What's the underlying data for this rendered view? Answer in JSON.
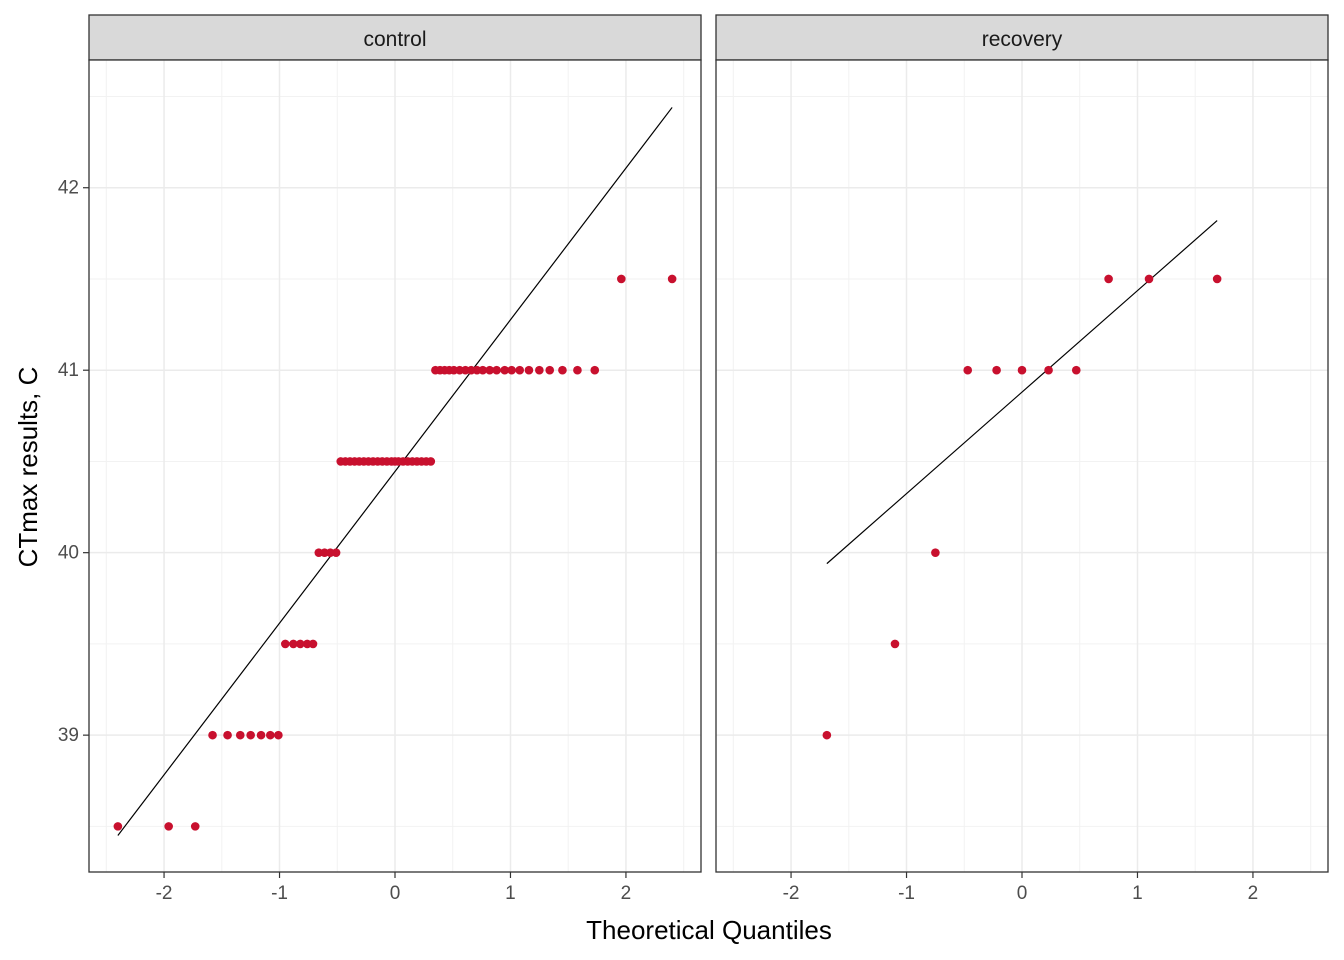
{
  "chart_data": {
    "type": "scatter",
    "subtype": "qq-plot",
    "xlabel": "Theoretical Quantiles",
    "ylabel": "CTmax results, C",
    "xlim": [
      -2.65,
      2.65
    ],
    "ylim": [
      38.25,
      42.7
    ],
    "x_ticks": [
      -2,
      -1,
      0,
      1,
      2
    ],
    "x_tick_labels": [
      "-2",
      "-1",
      "0",
      "1",
      "2"
    ],
    "y_ticks": [
      39,
      40,
      41,
      42
    ],
    "y_tick_labels": [
      "39",
      "40",
      "41",
      "42"
    ],
    "grid": true,
    "point_color": "#C8102E",
    "line_color": "#000000",
    "panels": [
      {
        "name": "control",
        "points": [
          {
            "x": -2.4,
            "y": 38.5
          },
          {
            "x": -1.96,
            "y": 38.5
          },
          {
            "x": -1.73,
            "y": 38.5
          },
          {
            "x": -1.58,
            "y": 39
          },
          {
            "x": -1.45,
            "y": 39
          },
          {
            "x": -1.34,
            "y": 39
          },
          {
            "x": -1.25,
            "y": 39
          },
          {
            "x": -1.16,
            "y": 39
          },
          {
            "x": -1.08,
            "y": 39
          },
          {
            "x": -1.01,
            "y": 39
          },
          {
            "x": -0.95,
            "y": 39.5
          },
          {
            "x": -0.88,
            "y": 39.5
          },
          {
            "x": -0.82,
            "y": 39.5
          },
          {
            "x": -0.76,
            "y": 39.5
          },
          {
            "x": -0.71,
            "y": 39.5
          },
          {
            "x": -0.66,
            "y": 40
          },
          {
            "x": -0.61,
            "y": 40
          },
          {
            "x": -0.56,
            "y": 40
          },
          {
            "x": -0.51,
            "y": 40
          },
          {
            "x": -0.47,
            "y": 40.5
          },
          {
            "x": -0.43,
            "y": 40.5
          },
          {
            "x": -0.39,
            "y": 40.5
          },
          {
            "x": -0.35,
            "y": 40.5
          },
          {
            "x": -0.31,
            "y": 40.5
          },
          {
            "x": -0.27,
            "y": 40.5
          },
          {
            "x": -0.23,
            "y": 40.5
          },
          {
            "x": -0.19,
            "y": 40.5
          },
          {
            "x": -0.15,
            "y": 40.5
          },
          {
            "x": -0.11,
            "y": 40.5
          },
          {
            "x": -0.07,
            "y": 40.5
          },
          {
            "x": -0.03,
            "y": 40.5
          },
          {
            "x": 0.0,
            "y": 40.5
          },
          {
            "x": 0.03,
            "y": 40.5
          },
          {
            "x": 0.07,
            "y": 40.5
          },
          {
            "x": 0.11,
            "y": 40.5
          },
          {
            "x": 0.15,
            "y": 40.5
          },
          {
            "x": 0.19,
            "y": 40.5
          },
          {
            "x": 0.23,
            "y": 40.5
          },
          {
            "x": 0.27,
            "y": 40.5
          },
          {
            "x": 0.31,
            "y": 40.5
          },
          {
            "x": 0.35,
            "y": 41
          },
          {
            "x": 0.39,
            "y": 41
          },
          {
            "x": 0.43,
            "y": 41
          },
          {
            "x": 0.47,
            "y": 41
          },
          {
            "x": 0.51,
            "y": 41
          },
          {
            "x": 0.56,
            "y": 41
          },
          {
            "x": 0.61,
            "y": 41
          },
          {
            "x": 0.66,
            "y": 41
          },
          {
            "x": 0.71,
            "y": 41
          },
          {
            "x": 0.76,
            "y": 41
          },
          {
            "x": 0.82,
            "y": 41
          },
          {
            "x": 0.88,
            "y": 41
          },
          {
            "x": 0.95,
            "y": 41
          },
          {
            "x": 1.01,
            "y": 41
          },
          {
            "x": 1.08,
            "y": 41
          },
          {
            "x": 1.16,
            "y": 41
          },
          {
            "x": 1.25,
            "y": 41
          },
          {
            "x": 1.34,
            "y": 41
          },
          {
            "x": 1.45,
            "y": 41
          },
          {
            "x": 1.58,
            "y": 41
          },
          {
            "x": 1.73,
            "y": 41
          },
          {
            "x": 1.96,
            "y": 41.5
          },
          {
            "x": 2.4,
            "y": 41.5
          }
        ],
        "qq_line": {
          "x": [
            -2.4,
            2.4
          ],
          "y": [
            38.45,
            42.44
          ]
        }
      },
      {
        "name": "recovery",
        "points": [
          {
            "x": -1.69,
            "y": 39
          },
          {
            "x": -1.1,
            "y": 39.5
          },
          {
            "x": -0.75,
            "y": 40
          },
          {
            "x": -0.47,
            "y": 41
          },
          {
            "x": -0.22,
            "y": 41
          },
          {
            "x": 0.0,
            "y": 41
          },
          {
            "x": 0.23,
            "y": 41
          },
          {
            "x": 0.47,
            "y": 41
          },
          {
            "x": 0.75,
            "y": 41.5
          },
          {
            "x": 1.1,
            "y": 41.5
          },
          {
            "x": 1.69,
            "y": 41.5
          }
        ],
        "qq_line": {
          "x": [
            -1.69,
            1.69
          ],
          "y": [
            39.94,
            41.82
          ]
        }
      }
    ]
  }
}
